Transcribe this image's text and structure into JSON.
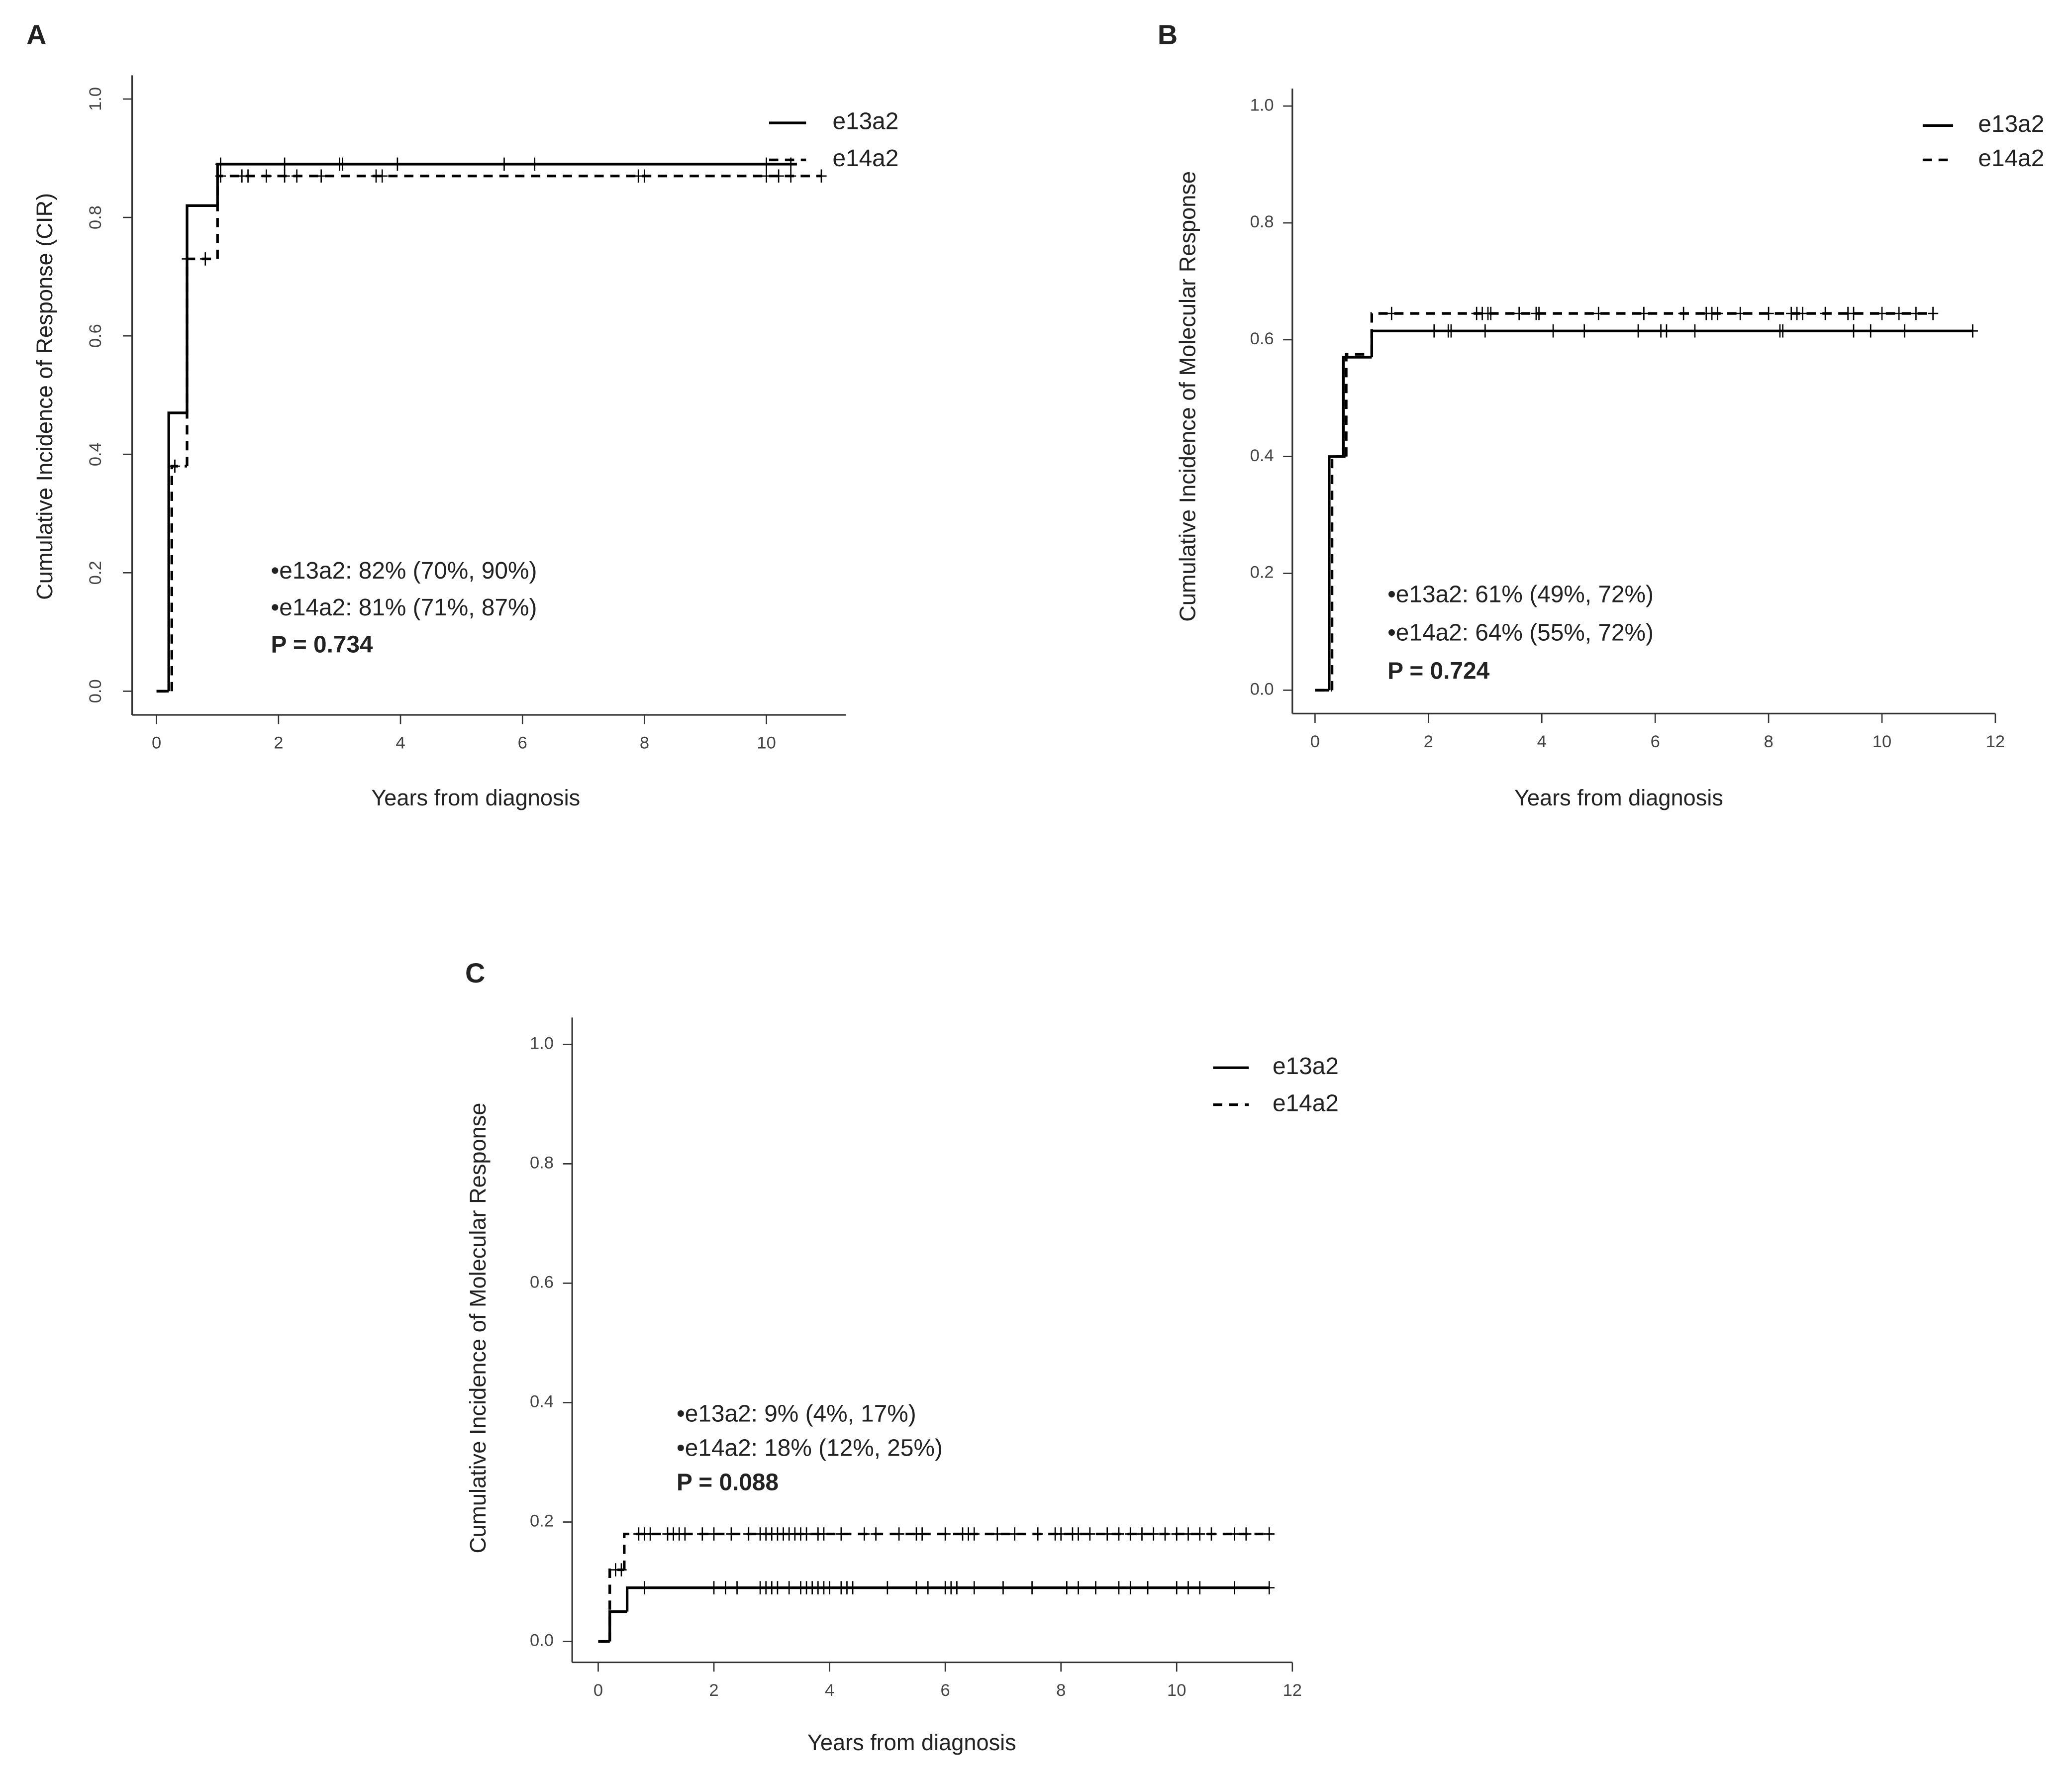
{
  "chart_data": [
    {
      "type": "line",
      "panel": "A",
      "ylabel": "Cumulative Incidence of Response (CIR)",
      "xlabel": "Years from diagnosis",
      "xlim": [
        -0.4,
        11.3
      ],
      "ylim": [
        -0.04,
        1.04
      ],
      "xticks": [
        0,
        2,
        4,
        6,
        8,
        10
      ],
      "yticks": [
        {
          "value": 0,
          "label": "0.0"
        },
        {
          "value": 0.2,
          "label": "0.2"
        },
        {
          "value": 0.4,
          "label": "0.4"
        },
        {
          "value": 0.6,
          "label": "0.6"
        },
        {
          "value": 0.8,
          "label": "0.8"
        },
        {
          "value": 1,
          "label": "1.0"
        }
      ],
      "legend": "top right",
      "series": [
        {
          "name": "e13a2",
          "color": "#000000",
          "linestyle": "solid",
          "x": [
            0,
            0.2,
            0.5,
            1.0,
            10.5
          ],
          "values": [
            0,
            0.47,
            0.82,
            0.89,
            0.89
          ],
          "censored": [
            1.05,
            2.1,
            3.0,
            3.05,
            3.95,
            5.7,
            6.2,
            10.0,
            10.4
          ]
        },
        {
          "name": "e14a2",
          "color": "#000000",
          "linestyle": "dashed",
          "x": [
            0,
            0.25,
            0.5,
            1.0,
            10.9
          ],
          "values": [
            0,
            0.38,
            0.73,
            0.87,
            0.87
          ],
          "censored": [
            0.3,
            0.5,
            0.8,
            1.05,
            1.4,
            1.5,
            1.8,
            2.1,
            2.3,
            2.7,
            3.6,
            3.7,
            7.9,
            8.0,
            10.0,
            10.2,
            10.4,
            10.9
          ]
        }
      ],
      "annotations": [
        "•e13a2: 82% (70%, 90%)",
        "•e14a2: 81% (71%, 87%)",
        "P = 0.734"
      ]
    },
    {
      "type": "line",
      "panel": "B",
      "ylabel": "Cumulative Incidence of Molecular Response",
      "xlabel": "Years from diagnosis",
      "xlim": [
        -0.4,
        12
      ],
      "ylim": [
        -0.04,
        1.03
      ],
      "xticks": [
        0,
        2,
        4,
        6,
        8,
        10,
        12
      ],
      "yticks": [
        {
          "value": 0,
          "label": "0.0"
        },
        {
          "value": 0.2,
          "label": "0.2"
        },
        {
          "value": 0.4,
          "label": "0.4"
        },
        {
          "value": 0.6,
          "label": "0.6"
        },
        {
          "value": 0.8,
          "label": "0.8"
        },
        {
          "value": 1,
          "label": "1.0"
        }
      ],
      "legend": "top right",
      "series": [
        {
          "name": "e13a2",
          "color": "#000000",
          "linestyle": "solid",
          "x": [
            0,
            0.25,
            0.5,
            1.0,
            11.6
          ],
          "values": [
            0,
            0.4,
            0.57,
            0.615,
            0.615
          ],
          "censored": [
            2.1,
            2.35,
            2.4,
            3.0,
            4.2,
            4.75,
            5.7,
            6.1,
            6.2,
            6.7,
            8.2,
            8.25,
            9.5,
            9.8,
            10.4,
            11.6
          ]
        },
        {
          "name": "e14a2",
          "color": "#000000",
          "linestyle": "dashed",
          "x": [
            0,
            0.3,
            0.55,
            1.0,
            10.9
          ],
          "values": [
            0,
            0.4,
            0.575,
            0.645,
            0.645
          ],
          "censored": [
            1.35,
            2.85,
            2.95,
            3.05,
            3.1,
            3.6,
            3.9,
            3.95,
            5.0,
            5.8,
            6.5,
            6.9,
            7.0,
            7.1,
            7.5,
            8.0,
            8.4,
            8.5,
            8.6,
            9.0,
            9.4,
            9.5,
            10.0,
            10.3,
            10.6,
            10.9
          ]
        }
      ],
      "annotations": [
        "•e13a2: 61% (49%, 72%)",
        "•e14a2: 64% (55%, 72%)",
        "P = 0.724"
      ]
    },
    {
      "type": "line",
      "panel": "C",
      "ylabel": "Cumulative Incidence of Molecular Response",
      "xlabel": "Years from diagnosis",
      "xlim": [
        -0.45,
        12
      ],
      "ylim": [
        -0.035,
        1.045
      ],
      "xticks": [
        0,
        2,
        4,
        6,
        8,
        10,
        12
      ],
      "yticks": [
        {
          "value": 0,
          "label": "0.0"
        },
        {
          "value": 0.2,
          "label": "0.2"
        },
        {
          "value": 0.4,
          "label": "0.4"
        },
        {
          "value": 0.6,
          "label": "0.6"
        },
        {
          "value": 0.8,
          "label": "0.8"
        },
        {
          "value": 1,
          "label": "1.0"
        }
      ],
      "legend": "top right",
      "series": [
        {
          "name": "e13a2",
          "color": "#000000",
          "linestyle": "solid",
          "x": [
            0,
            0.2,
            0.5,
            11.6
          ],
          "values": [
            0,
            0.05,
            0.09,
            0.09
          ],
          "censored": [
            0.8,
            2.0,
            2.2,
            2.4,
            2.8,
            2.9,
            3.0,
            3.1,
            3.3,
            3.5,
            3.6,
            3.7,
            3.8,
            3.9,
            4.0,
            4.2,
            4.3,
            4.4,
            5.0,
            5.5,
            5.7,
            6.0,
            6.1,
            6.2,
            6.5,
            7.0,
            7.5,
            8.1,
            8.3,
            8.6,
            9.0,
            9.2,
            9.5,
            10.0,
            10.2,
            10.4,
            11.0,
            11.6
          ]
        },
        {
          "name": "e14a2",
          "color": "#000000",
          "linestyle": "dashed",
          "x": [
            0,
            0.2,
            0.45,
            11.6
          ],
          "values": [
            0,
            0.12,
            0.18,
            0.18
          ],
          "censored": [
            0.3,
            0.4,
            0.7,
            0.8,
            0.9,
            1.2,
            1.3,
            1.4,
            1.5,
            1.8,
            2.0,
            2.3,
            2.6,
            2.8,
            2.9,
            3.0,
            3.1,
            3.2,
            3.3,
            3.4,
            3.5,
            3.6,
            3.8,
            3.9,
            4.2,
            4.6,
            4.8,
            5.2,
            5.5,
            5.6,
            6.0,
            6.3,
            6.4,
            6.5,
            6.9,
            7.2,
            7.6,
            7.9,
            8.0,
            8.2,
            8.3,
            8.5,
            8.8,
            9.0,
            9.2,
            9.4,
            9.6,
            9.8,
            10.0,
            10.2,
            10.4,
            10.6,
            11.0,
            11.2,
            11.6
          ]
        }
      ],
      "annotations": [
        "•e13a2: 9% (4%, 17%)",
        "•e14a2: 18% (12%, 25%)",
        "P = 0.088"
      ]
    }
  ]
}
